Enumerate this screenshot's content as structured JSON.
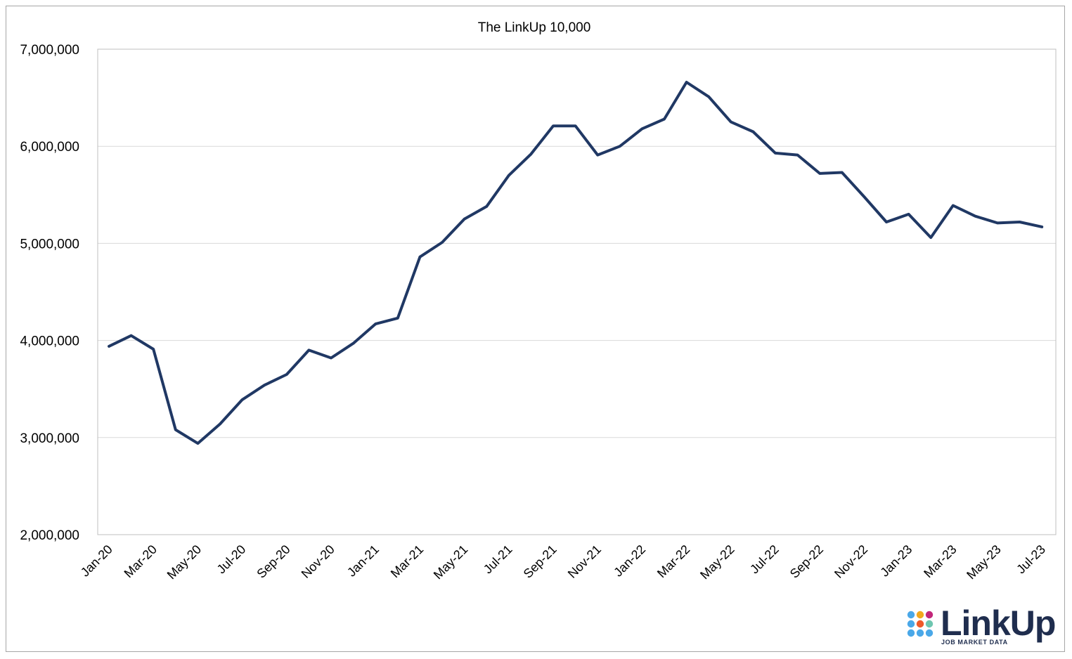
{
  "chart_data": {
    "type": "line",
    "title": "The LinkUp 10,000",
    "xlabel": "",
    "ylabel": "",
    "ylim": [
      2000000,
      7000000
    ],
    "yticks": [
      2000000,
      3000000,
      4000000,
      5000000,
      6000000,
      7000000
    ],
    "ytick_labels": [
      "2,000,000",
      "3,000,000",
      "4,000,000",
      "5,000,000",
      "6,000,000",
      "7,000,000"
    ],
    "grid": "horizontal",
    "line_color": "#203864",
    "categories": [
      "Jan-20",
      "Feb-20",
      "Mar-20",
      "Apr-20",
      "May-20",
      "Jun-20",
      "Jul-20",
      "Aug-20",
      "Sep-20",
      "Oct-20",
      "Nov-20",
      "Dec-20",
      "Jan-21",
      "Feb-21",
      "Mar-21",
      "Apr-21",
      "May-21",
      "Jun-21",
      "Jul-21",
      "Aug-21",
      "Sep-21",
      "Oct-21",
      "Nov-21",
      "Dec-21",
      "Jan-22",
      "Feb-22",
      "Mar-22",
      "Apr-22",
      "May-22",
      "Jun-22",
      "Jul-22",
      "Aug-22",
      "Sep-22",
      "Oct-22",
      "Nov-22",
      "Dec-22",
      "Jan-23",
      "Feb-23",
      "Mar-23",
      "Apr-23",
      "May-23",
      "Jun-23",
      "Jul-23"
    ],
    "tick_labels": [
      "Jan-20",
      "Mar-20",
      "May-20",
      "Jul-20",
      "Sep-20",
      "Nov-20",
      "Jan-21",
      "Mar-21",
      "May-21",
      "Jul-21",
      "Sep-21",
      "Nov-21",
      "Jan-22",
      "Mar-22",
      "May-22",
      "Jul-22",
      "Sep-22",
      "Nov-22",
      "Jan-23",
      "Mar-23",
      "May-23",
      "Jul-23"
    ],
    "values": [
      3940000,
      4050000,
      3910000,
      3080000,
      2940000,
      3140000,
      3390000,
      3540000,
      3650000,
      3900000,
      3820000,
      3970000,
      4170000,
      4230000,
      4860000,
      5010000,
      5250000,
      5380000,
      5700000,
      5920000,
      6210000,
      6210000,
      5910000,
      6000000,
      6180000,
      6280000,
      6660000,
      6510000,
      6250000,
      6150000,
      5930000,
      5910000,
      5720000,
      5730000,
      5480000,
      5220000,
      5300000,
      5060000,
      5390000,
      5280000,
      5210000,
      5220000,
      5170000
    ]
  },
  "logo": {
    "word": "LinkUp",
    "tagline": "JOB MARKET DATA",
    "dot_colors": [
      "#4aa8e8",
      "#f2a81d",
      "#c2267a",
      "#4aa8e8",
      "#ef5a2a",
      "#6ec6b0",
      "#4aa8e8",
      "#4aa8e8",
      "#4aa8e8"
    ]
  }
}
